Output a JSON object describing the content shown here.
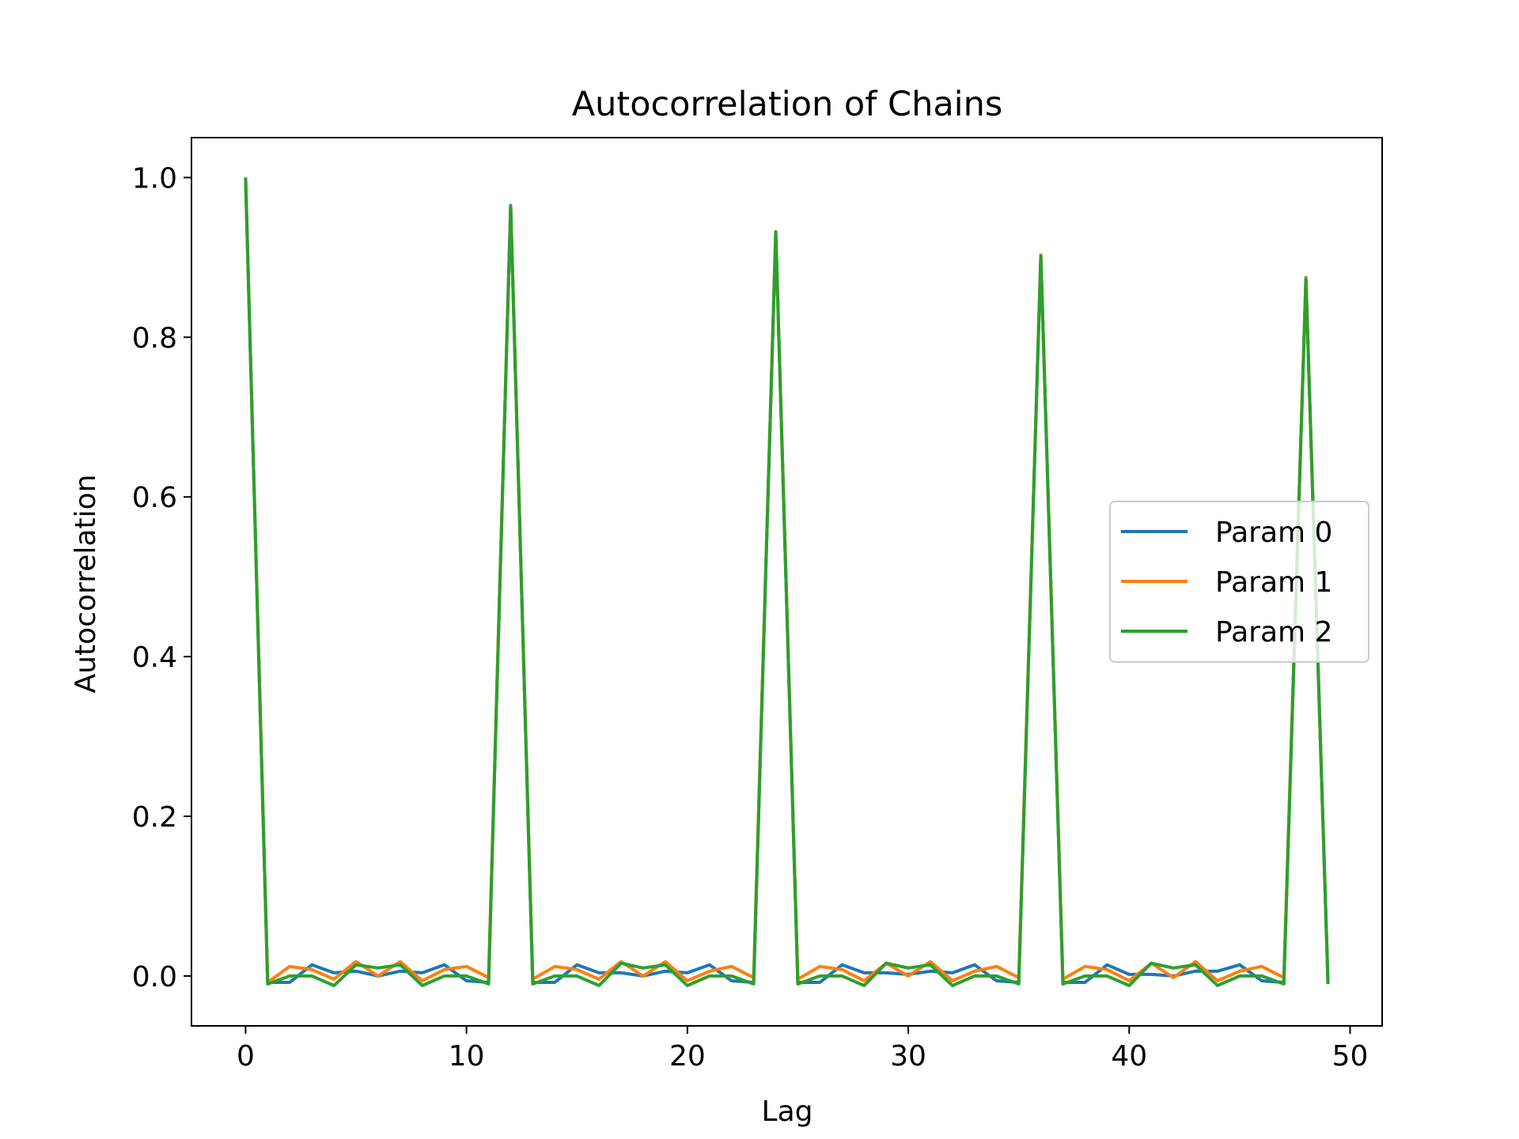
{
  "chart_data": {
    "type": "line",
    "title": "Autocorrelation of Chains",
    "xlabel": "Lag",
    "ylabel": "Autocorrelation",
    "xlim": [
      -2.45,
      51.45
    ],
    "ylim": [
      -0.0625,
      1.05
    ],
    "xticks": [
      0,
      10,
      20,
      30,
      40,
      50
    ],
    "xtick_labels": [
      "0",
      "10",
      "20",
      "30",
      "40",
      "50"
    ],
    "yticks": [
      0.0,
      0.2,
      0.4,
      0.6,
      0.8,
      1.0
    ],
    "ytick_labels": [
      "0.0",
      "0.2",
      "0.4",
      "0.6",
      "0.8",
      "1.0"
    ],
    "grid": false,
    "legend": {
      "position": "center-right"
    },
    "x": [
      0,
      1,
      2,
      3,
      4,
      5,
      6,
      7,
      8,
      9,
      10,
      11,
      12,
      13,
      14,
      15,
      16,
      17,
      18,
      19,
      20,
      21,
      22,
      23,
      24,
      25,
      26,
      27,
      28,
      29,
      30,
      31,
      32,
      33,
      34,
      35,
      36,
      37,
      38,
      39,
      40,
      41,
      42,
      43,
      44,
      45,
      46,
      47,
      48,
      49
    ],
    "series": [
      {
        "name": "Param 0",
        "color": "#1f77b4",
        "values": [
          1.0,
          -0.008,
          -0.008,
          0.014,
          0.004,
          0.006,
          0.0,
          0.006,
          0.004,
          0.014,
          -0.006,
          -0.008,
          0.965,
          -0.008,
          -0.008,
          0.014,
          0.004,
          0.004,
          0.0,
          0.006,
          0.004,
          0.014,
          -0.006,
          -0.008,
          0.932,
          -0.008,
          -0.008,
          0.014,
          0.004,
          0.004,
          0.002,
          0.006,
          0.004,
          0.014,
          -0.006,
          -0.008,
          0.902,
          -0.008,
          -0.008,
          0.014,
          0.002,
          0.002,
          0.0,
          0.006,
          0.006,
          0.014,
          -0.006,
          -0.008,
          0.873,
          -0.01
        ]
      },
      {
        "name": "Param 1",
        "color": "#ff7f0e",
        "values": [
          1.0,
          -0.008,
          0.012,
          0.008,
          -0.004,
          0.018,
          0.0,
          0.018,
          -0.006,
          0.008,
          0.012,
          -0.002,
          0.965,
          -0.004,
          0.012,
          0.008,
          -0.004,
          0.018,
          0.0,
          0.018,
          -0.006,
          0.006,
          0.012,
          -0.002,
          0.932,
          -0.004,
          0.012,
          0.008,
          -0.006,
          0.016,
          0.0,
          0.018,
          -0.006,
          0.006,
          0.012,
          -0.002,
          0.903,
          -0.004,
          0.012,
          0.008,
          -0.006,
          0.016,
          -0.002,
          0.018,
          -0.006,
          0.006,
          0.012,
          -0.002,
          0.875,
          -0.01
        ]
      },
      {
        "name": "Param 2",
        "color": "#2ca02c",
        "values": [
          1.0,
          -0.01,
          0.0,
          0.0,
          -0.012,
          0.014,
          0.01,
          0.014,
          -0.012,
          0.0,
          0.0,
          -0.01,
          0.965,
          -0.01,
          0.0,
          0.0,
          -0.012,
          0.016,
          0.01,
          0.014,
          -0.012,
          0.0,
          0.0,
          -0.01,
          0.932,
          -0.01,
          0.0,
          0.0,
          -0.012,
          0.016,
          0.01,
          0.014,
          -0.012,
          0.0,
          0.0,
          -0.01,
          0.902,
          -0.01,
          0.0,
          0.0,
          -0.012,
          0.016,
          0.01,
          0.014,
          -0.012,
          0.0,
          0.0,
          -0.01,
          0.873,
          -0.01
        ]
      }
    ]
  }
}
